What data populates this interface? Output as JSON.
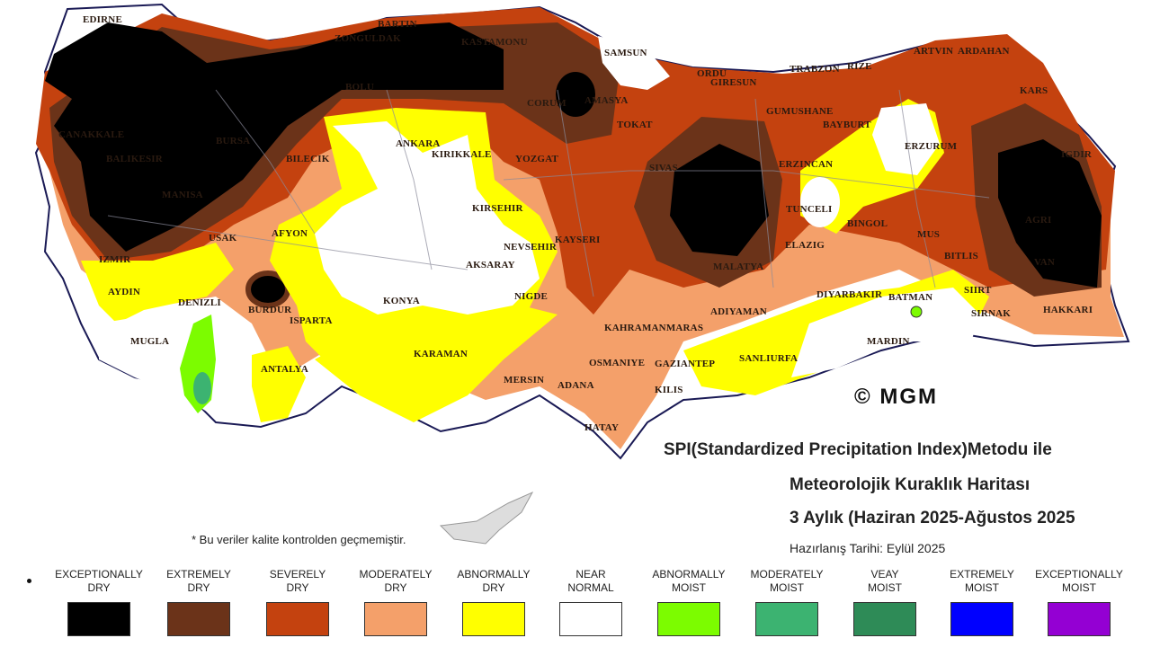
{
  "title": {
    "line1": "SPI(Standardized Precipitation Index)Metodu ile",
    "line2": "Meteorolojik Kuraklık Haritası",
    "line3": "3 Aylık (Haziran 2025-Ağustos 2025"
  },
  "prepared": "Hazırlanış Tarihi: Eylül 2025",
  "note": "* Bu veriler kalite kontrolden geçmemiştir.",
  "copyright": "© MGM",
  "colors": {
    "exceptionally_dry": "#000000",
    "extremely_dry": "#6b3319",
    "severely_dry": "#c4420f",
    "moderately_dry": "#f4a06a",
    "abnormally_dry": "#ffff00",
    "near_normal": "#ffffff",
    "abnormally_moist": "#7cfc00",
    "moderately_moist": "#3cb371",
    "very_moist": "#2e8b57",
    "extremely_moist": "#0000ff",
    "exceptionally_moist": "#9400d3"
  },
  "legend": [
    {
      "line1": "EXCEPTIONALLY",
      "line2": "DRY",
      "color": "#000000"
    },
    {
      "line1": "EXTREMELY",
      "line2": "DRY",
      "color": "#6b3319"
    },
    {
      "line1": "SEVERELY",
      "line2": "DRY",
      "color": "#c4420f"
    },
    {
      "line1": "MODERATELY",
      "line2": "DRY",
      "color": "#f4a06a"
    },
    {
      "line1": "ABNORMALLY",
      "line2": "DRY",
      "color": "#ffff00"
    },
    {
      "line1": "NEAR",
      "line2": "NORMAL",
      "color": "#ffffff"
    },
    {
      "line1": "ABNORMALLY",
      "line2": "MOIST",
      "color": "#7cfc00"
    },
    {
      "line1": "MODERATELY",
      "line2": "MOIST",
      "color": "#3cb371"
    },
    {
      "line1": "VEAY",
      "line2": "MOIST",
      "color": "#2e8b57"
    },
    {
      "line1": "EXTREMELY",
      "line2": "MOIST",
      "color": "#0000ff"
    },
    {
      "line1": "EXCEPTIONALLY",
      "line2": "MOIST",
      "color": "#9400d3"
    }
  ],
  "cities": [
    "EDIRNE",
    "ZONGULDAK",
    "BARTIN",
    "KASTAMONU",
    "SAMSUN",
    "ORDU",
    "GIRESUN",
    "TRABZON",
    "RIZE",
    "ARTVIN",
    "ARDAHAN",
    "BOLU",
    "CANAKKALE",
    "BALIKESIR",
    "BURSA",
    "BILECIK",
    "ANKARA",
    "KIRIKKALE",
    "CORUM",
    "AMASYA",
    "TOKAT",
    "YOZGAT",
    "SIVAS",
    "GUMUSHANE",
    "BAYBURT",
    "ERZURUM",
    "KARS",
    "IGDIR",
    "ERZINCAN",
    "TUNCELI",
    "BINGOL",
    "MUS",
    "AGRI",
    "KIRSEHIR",
    "NEVSEHIR",
    "AKSARAY",
    "NIGDE",
    "KAYSERI",
    "MALATYA",
    "ELAZIG",
    "BITLIS",
    "VAN",
    "MANISA",
    "IZMIR",
    "AYDIN",
    "USAK",
    "AFYON",
    "DENIZLI",
    "BURDUR",
    "ISPARTA",
    "MUGLA",
    "ANTALYA",
    "KONYA",
    "KARAMAN",
    "MERSIN",
    "ADANA",
    "OSMANIYE",
    "HATAY",
    "KAHRAMANMARAS",
    "ADIYAMAN",
    "GAZIANTEP",
    "KILIS",
    "SANLIURFA",
    "MARDIN",
    "DIYARBAKIR",
    "BATMAN",
    "SIIRT",
    "SIRNAK",
    "HAKKARI"
  ]
}
